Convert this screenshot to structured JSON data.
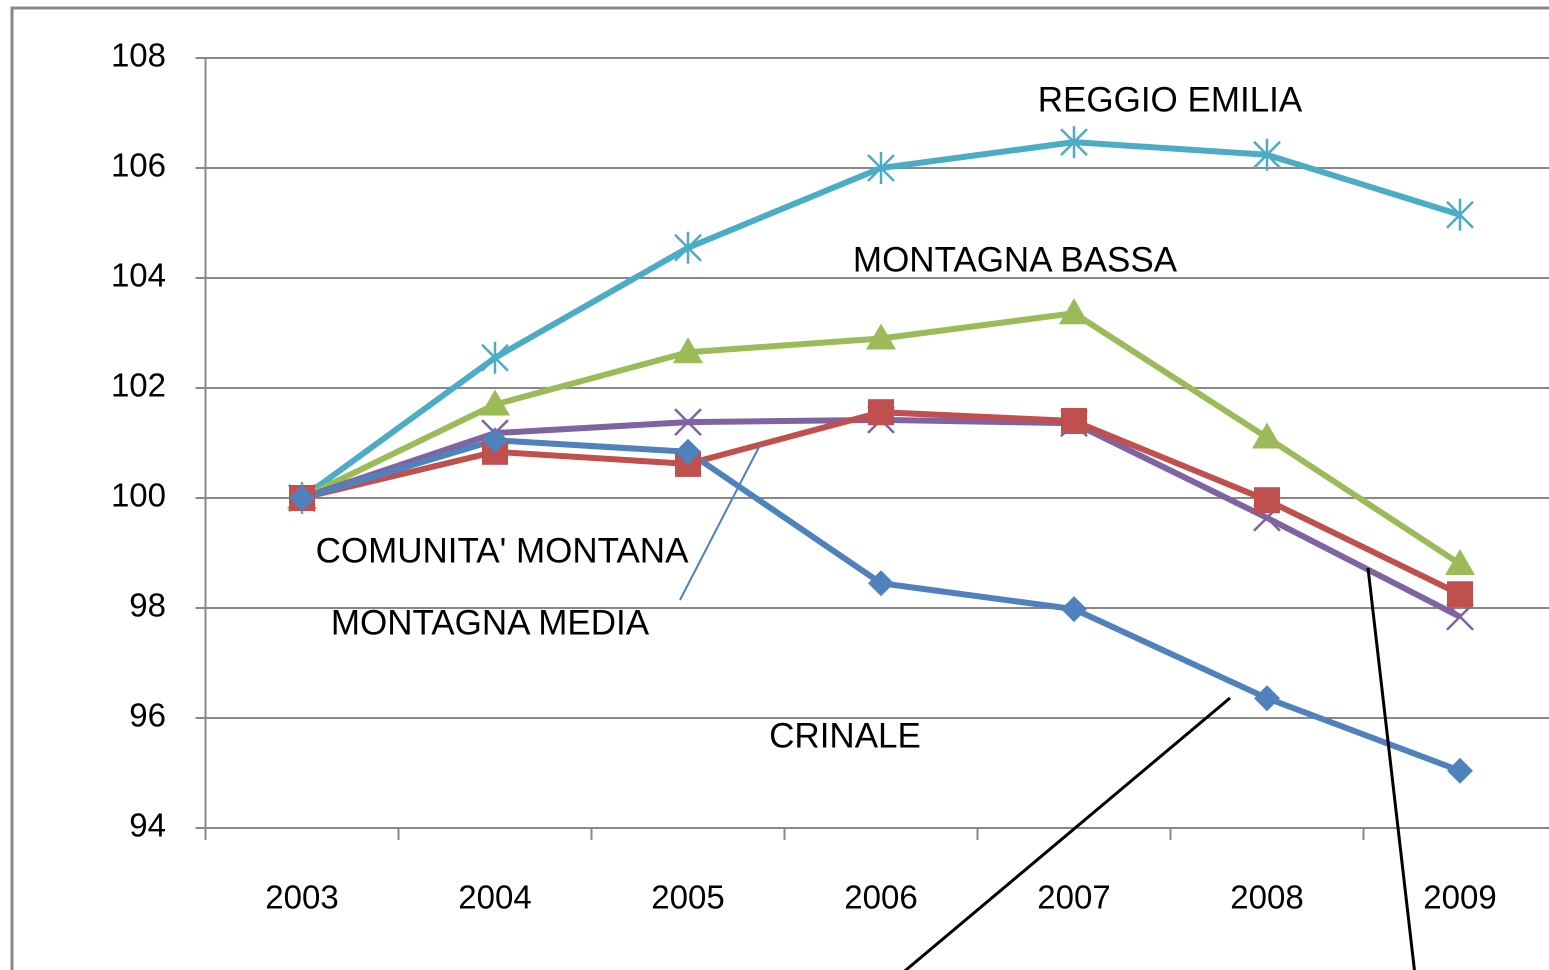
{
  "chart_data": {
    "type": "line",
    "categories": [
      "2003",
      "2004",
      "2005",
      "2006",
      "2007",
      "2008",
      "2009"
    ],
    "series": [
      {
        "name": "REGGIO EMILIA",
        "color": "#4bacc6",
        "marker": "asterisk",
        "values": [
          100,
          102.55,
          104.55,
          106.0,
          106.47,
          106.24,
          105.15
        ]
      },
      {
        "name": "MONTAGNA BASSA",
        "color": "#9bbb59",
        "marker": "triangle",
        "values": [
          100,
          101.7,
          102.65,
          102.9,
          103.36,
          101.1,
          98.8
        ]
      },
      {
        "name": "COMUNITA' MONTANA",
        "color": "#8064a2",
        "marker": "x",
        "values": [
          100,
          101.18,
          101.38,
          101.42,
          101.36,
          99.64,
          97.84
        ]
      },
      {
        "name": "MONTAGNA MEDIA",
        "color": "#c0504d",
        "marker": "square",
        "values": [
          100,
          100.84,
          100.62,
          101.56,
          101.4,
          99.96,
          98.25
        ]
      },
      {
        "name": "CRINALE",
        "color": "#4f81bd",
        "marker": "diamond",
        "values": [
          100,
          101.05,
          100.84,
          98.45,
          97.98,
          96.36,
          95.04
        ]
      }
    ],
    "ylim": [
      94,
      108
    ],
    "yticks": [
      94,
      96,
      98,
      100,
      102,
      104,
      106,
      108
    ],
    "grid": true
  }
}
